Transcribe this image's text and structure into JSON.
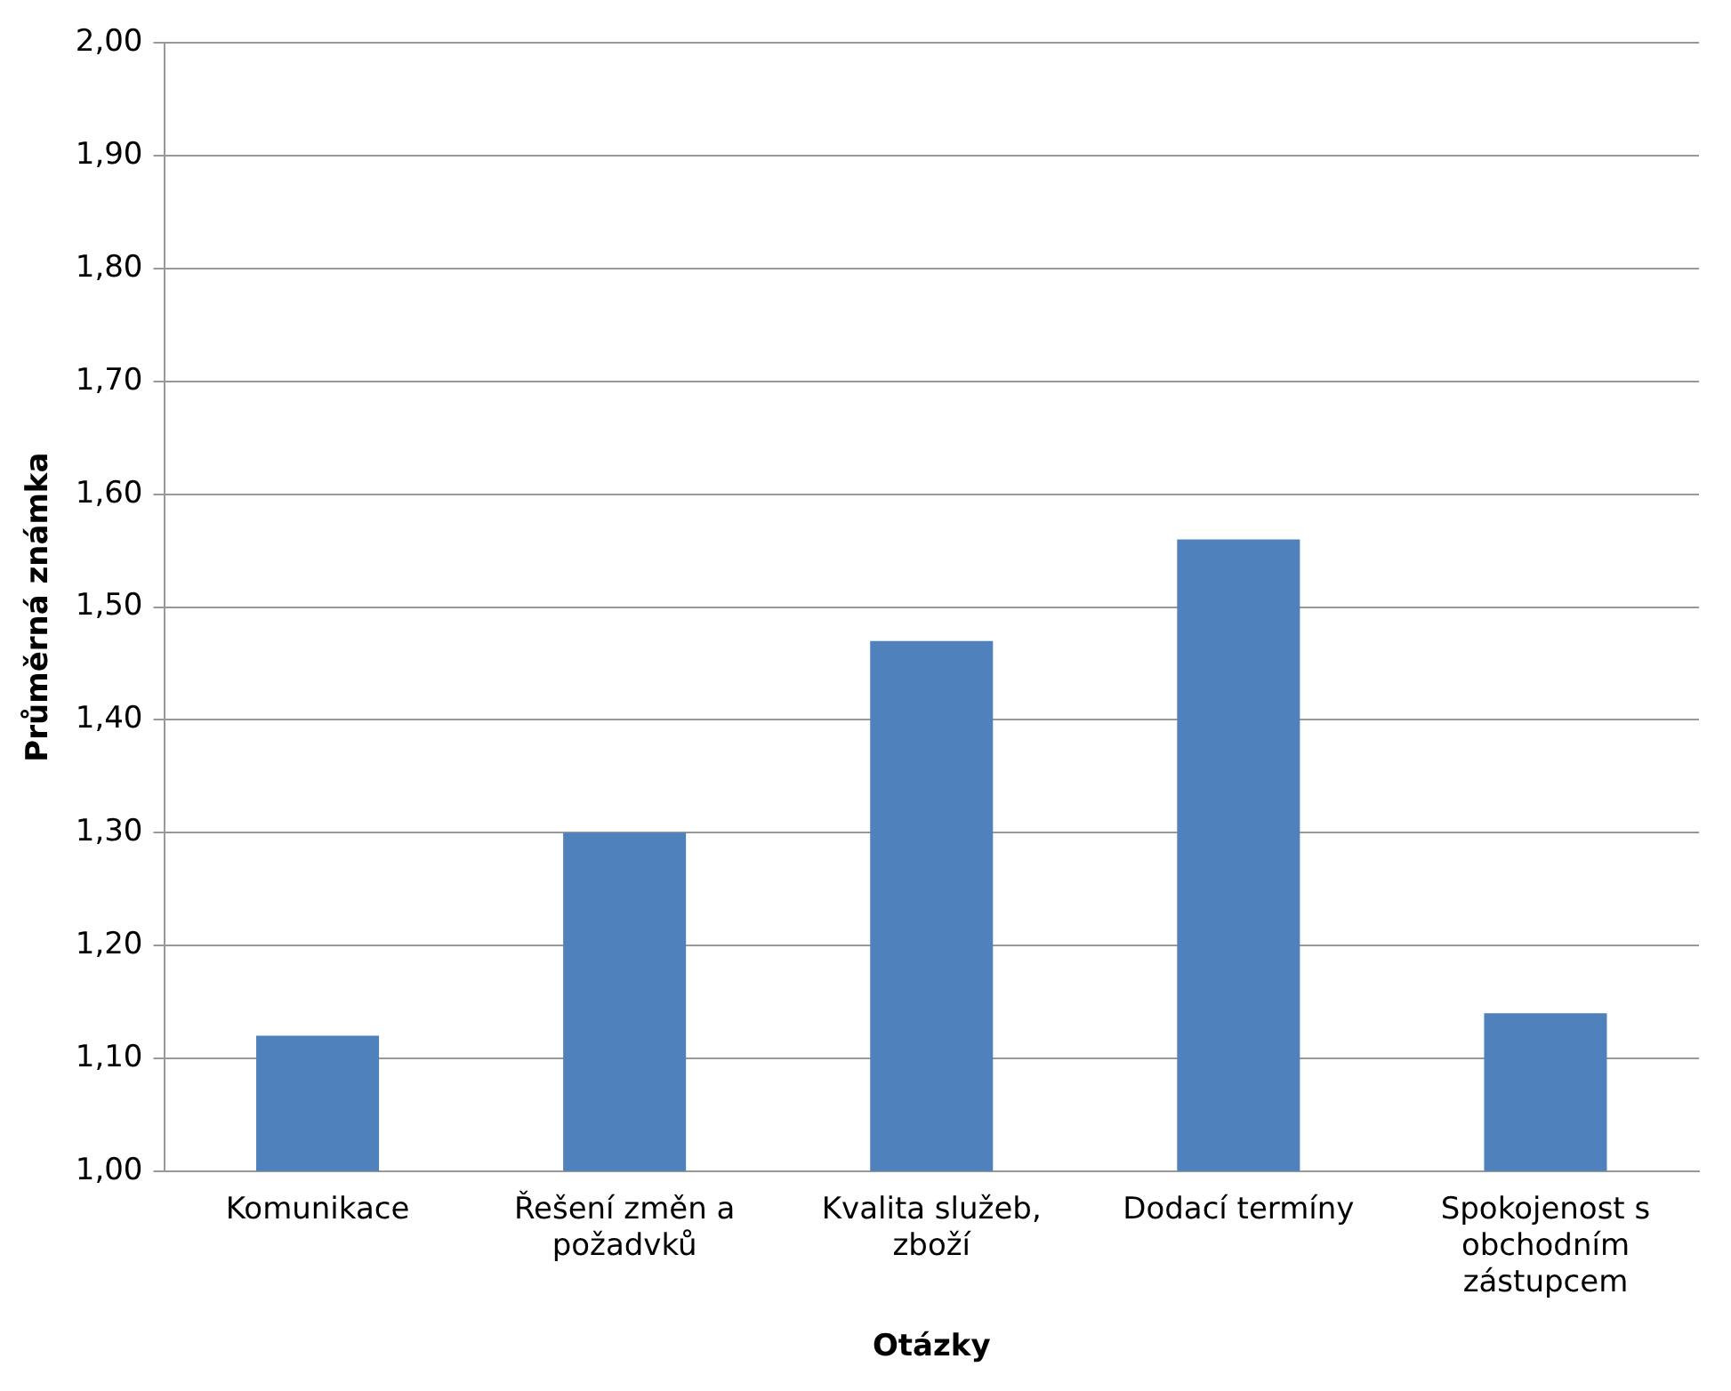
{
  "chart_data": {
    "type": "bar",
    "xlabel": "Otázky",
    "ylabel": "Průměrná známka",
    "categories": [
      "Komunikace",
      "Řešení změn a požadvků",
      "Kvalita služeb, zboží",
      "Dodací termíny",
      "Spokojenost s obchodním zástupcem"
    ],
    "values": [
      1.12,
      1.3,
      1.47,
      1.56,
      1.14
    ],
    "color": "#4f81bd",
    "ylim": [
      1,
      2
    ],
    "yticks": [
      {
        "value": 1,
        "label": "1,00"
      },
      {
        "value": 1.1,
        "label": "1,10"
      },
      {
        "value": 1.2,
        "label": "1,20"
      },
      {
        "value": 1.3,
        "label": "1,30"
      },
      {
        "value": 1.4,
        "label": "1,40"
      },
      {
        "value": 1.5,
        "label": "1,50"
      },
      {
        "value": 1.6,
        "label": "1,60"
      },
      {
        "value": 1.7,
        "label": "1,70"
      },
      {
        "value": 1.8,
        "label": "1,80"
      },
      {
        "value": 1.9,
        "label": "1,90"
      },
      {
        "value": 2,
        "label": "2,00"
      }
    ],
    "grid": "y"
  }
}
